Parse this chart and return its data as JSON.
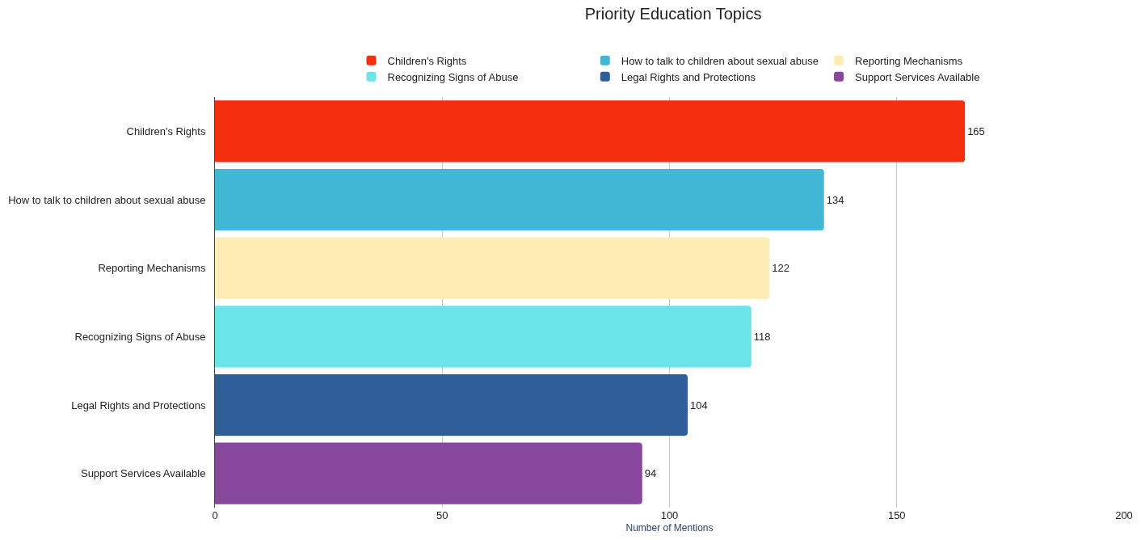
{
  "chart_data": {
    "type": "bar",
    "orientation": "horizontal",
    "title": "Priority Education Topics",
    "xlabel": "Number of Mentions",
    "categories": [
      "Children's Rights",
      "How to talk to children about sexual abuse",
      "Reporting Mechanisms",
      "Recognizing Signs of Abuse",
      "Legal Rights and Protections",
      "Support Services Available"
    ],
    "series": [
      {
        "name": "Children's Rights",
        "color": "#f42e0e",
        "values": [
          165,
          null,
          null,
          null,
          null,
          null
        ]
      },
      {
        "name": "How to talk to children about sexual abuse",
        "color": "#42b7d6",
        "values": [
          null,
          134,
          null,
          null,
          null,
          null
        ]
      },
      {
        "name": "Reporting Mechanisms",
        "color": "#feedb2",
        "values": [
          null,
          null,
          122,
          null,
          null,
          null
        ]
      },
      {
        "name": "Recognizing Signs of Abuse",
        "color": "#6be4e9",
        "values": [
          null,
          null,
          null,
          118,
          null,
          null
        ]
      },
      {
        "name": "Legal Rights and Protections",
        "color": "#2e5f98",
        "values": [
          null,
          null,
          null,
          null,
          104,
          null
        ]
      },
      {
        "name": "Support Services Available",
        "color": "#87479c",
        "values": [
          null,
          null,
          null,
          null,
          null,
          94
        ]
      }
    ],
    "xlim": [
      0,
      200
    ],
    "xticks": [
      0,
      50,
      100,
      150,
      200
    ],
    "grid": "x",
    "legend": "top",
    "data_labels": true
  }
}
